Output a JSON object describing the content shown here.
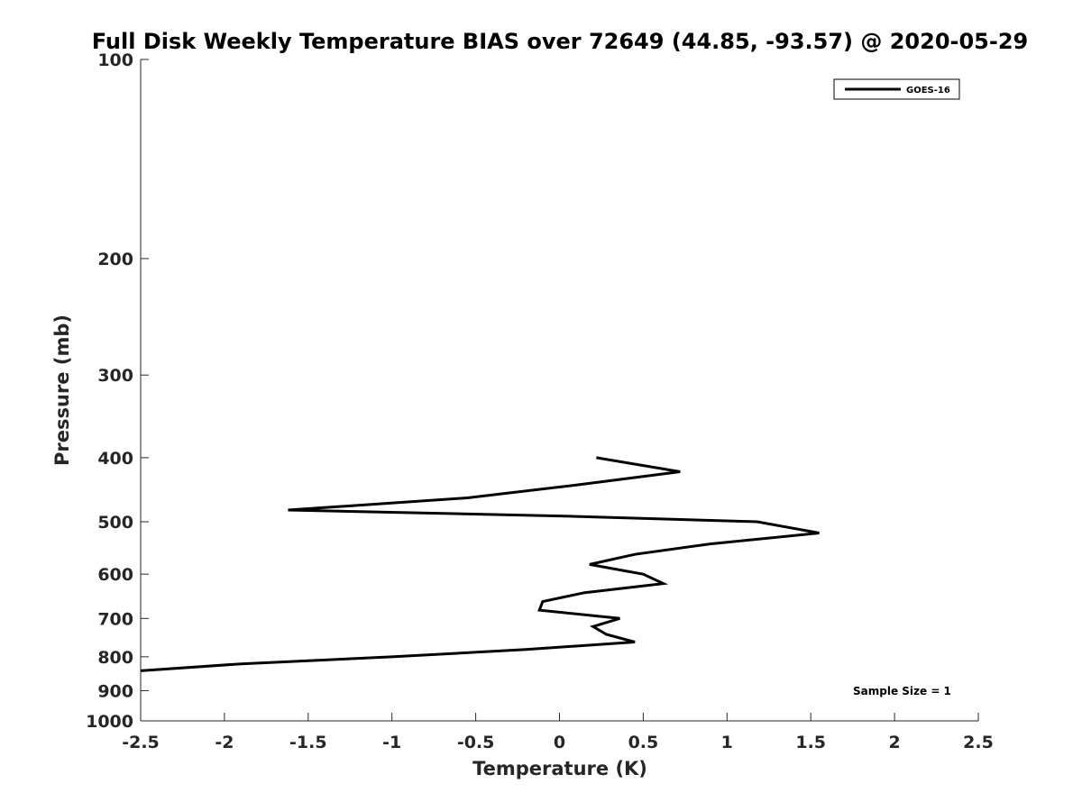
{
  "chart_data": {
    "type": "line",
    "title": "Full Disk Weekly Temperature BIAS over 72649 (44.85, -93.57) @ 2020-05-29",
    "xlabel": "Temperature (K)",
    "ylabel": "Pressure (mb)",
    "xlim": [
      -2.5,
      2.5
    ],
    "ylim": [
      1000,
      100
    ],
    "yscale": "log",
    "y_reversed": true,
    "x_ticks": [
      "-2.5",
      "-2",
      "-1.5",
      "-1",
      "-0.5",
      "0",
      "0.5",
      "1",
      "1.5",
      "2",
      "2.5"
    ],
    "x_tick_values": [
      -2.5,
      -2,
      -1.5,
      -1,
      -0.5,
      0,
      0.5,
      1,
      1.5,
      2,
      2.5
    ],
    "y_ticks": [
      "100",
      "200",
      "300",
      "400",
      "500",
      "600",
      "700",
      "800",
      "900",
      "1000"
    ],
    "y_tick_values": [
      100,
      200,
      300,
      400,
      500,
      600,
      700,
      800,
      900,
      1000
    ],
    "grid": false,
    "legend_position": "top-right",
    "annotations": [
      "Sample Size = 1"
    ],
    "series": [
      {
        "name": "GOES-16",
        "color": "#000000",
        "x": [
          0.22,
          0.72,
          0.1,
          -0.55,
          -1.62,
          0.0,
          1.18,
          1.55,
          0.9,
          0.45,
          0.18,
          0.5,
          0.62,
          0.15,
          -0.1,
          -0.12,
          0.36,
          0.2,
          0.28,
          0.45,
          -0.2,
          -1.0,
          -1.9,
          -2.5
        ],
        "y": [
          400,
          420,
          440,
          460,
          480,
          490,
          500,
          520,
          540,
          560,
          580,
          600,
          620,
          640,
          660,
          680,
          700,
          720,
          740,
          760,
          780,
          800,
          820,
          840
        ]
      }
    ]
  }
}
